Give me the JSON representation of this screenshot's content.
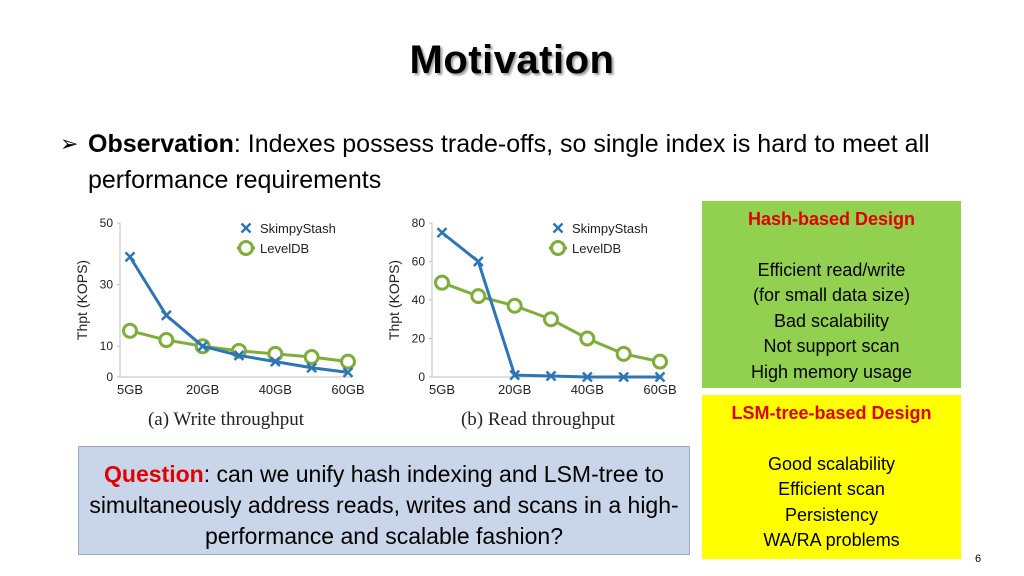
{
  "slide": {
    "title": "Motivation",
    "observation_label": "Observation",
    "observation_text": ": Indexes possess trade-offs, so single index is hard to meet all performance requirements",
    "page_number": "6"
  },
  "hash_box": {
    "heading": "Hash-based Design",
    "lines": [
      "Efficient read/write",
      "(for small data size)",
      "Bad scalability",
      "Not support scan",
      "High memory usage"
    ],
    "color": "#92d050"
  },
  "lsm_box": {
    "heading": "LSM-tree-based Design",
    "lines": [
      "Good scalability",
      "Efficient scan",
      "Persistency",
      "WA/RA problems"
    ],
    "color": "#ffff00"
  },
  "question": {
    "label": "Question",
    "text": ": can we unify hash indexing and LSM-tree to simultaneously address reads, writes and scans in a high-performance and scalable fashion?"
  },
  "chart_data": [
    {
      "type": "line",
      "caption": "(a)  Write throughput",
      "ylabel": "Thpt (KOPS)",
      "ylim": [
        0,
        50
      ],
      "yticks": [
        0,
        10,
        30,
        50
      ],
      "x": [
        "5GB",
        "",
        "20GB",
        "",
        "40GB",
        "",
        "60GB"
      ],
      "xtick_labels": [
        "5GB",
        "20GB",
        "40GB",
        "60GB"
      ],
      "series": [
        {
          "name": "SkimpyStash",
          "color": "#2e75b6",
          "marker": "x",
          "values": [
            39,
            20,
            10,
            7,
            5,
            3,
            1.5
          ]
        },
        {
          "name": "LevelDB",
          "color": "#7fad3b",
          "marker": "circle",
          "values": [
            15,
            12,
            10,
            8.5,
            7.5,
            6.5,
            5
          ]
        }
      ]
    },
    {
      "type": "line",
      "caption": "(b)  Read throughput",
      "ylabel": "Thpt (KOPS)",
      "ylim": [
        0,
        80
      ],
      "yticks": [
        0,
        20,
        40,
        60,
        80
      ],
      "x": [
        "5GB",
        "",
        "20GB",
        "",
        "40GB",
        "",
        "60GB"
      ],
      "xtick_labels": [
        "5GB",
        "20GB",
        "40GB",
        "60GB"
      ],
      "series": [
        {
          "name": "SkimpyStash",
          "color": "#2e75b6",
          "marker": "x",
          "values": [
            75,
            60,
            1,
            0.5,
            0,
            0,
            0
          ]
        },
        {
          "name": "LevelDB",
          "color": "#7fad3b",
          "marker": "circle",
          "values": [
            49,
            42,
            37,
            30,
            20,
            12,
            8
          ]
        }
      ]
    }
  ]
}
